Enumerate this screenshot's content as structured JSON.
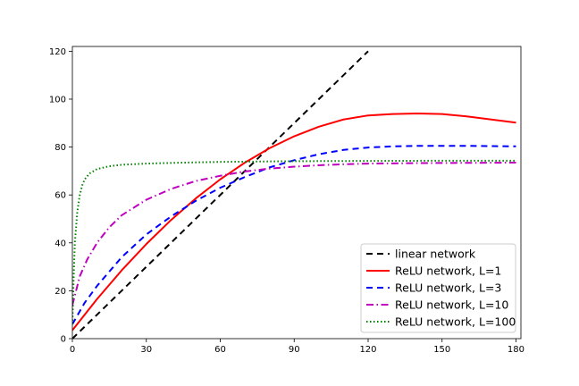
{
  "chart_data": {
    "type": "line",
    "title": "",
    "xlabel": "",
    "ylabel": "",
    "xlim": [
      0,
      182
    ],
    "ylim": [
      0,
      122
    ],
    "xticks": [
      0,
      30,
      60,
      90,
      120,
      150,
      180
    ],
    "yticks": [
      0,
      20,
      40,
      60,
      80,
      100,
      120
    ],
    "grid": false,
    "legend_position": "lower-right",
    "series": [
      {
        "name": "linear network",
        "color": "#000000",
        "style": "dashed",
        "points": [
          [
            0,
            0
          ],
          [
            120,
            120
          ]
        ]
      },
      {
        "name": "ReLU network, L=1",
        "color": "#ff0000",
        "style": "solid",
        "points": [
          [
            0,
            3.5
          ],
          [
            10,
            16.5
          ],
          [
            20,
            28.5
          ],
          [
            30,
            39.5
          ],
          [
            40,
            49.5
          ],
          [
            50,
            58.5
          ],
          [
            60,
            66.5
          ],
          [
            70,
            73.5
          ],
          [
            80,
            79.5
          ],
          [
            90,
            84.5
          ],
          [
            100,
            88.5
          ],
          [
            110,
            91.5
          ],
          [
            120,
            93.2
          ],
          [
            130,
            93.8
          ],
          [
            140,
            94.0
          ],
          [
            150,
            93.8
          ],
          [
            160,
            92.8
          ],
          [
            170,
            91.5
          ],
          [
            180,
            90.2
          ]
        ]
      },
      {
        "name": "ReLU network, L=3",
        "color": "#0000ff",
        "style": "dashed",
        "points": [
          [
            0,
            6
          ],
          [
            5,
            15
          ],
          [
            10,
            22
          ],
          [
            20,
            34
          ],
          [
            30,
            43.5
          ],
          [
            40,
            51
          ],
          [
            50,
            57.5
          ],
          [
            60,
            63
          ],
          [
            70,
            67.5
          ],
          [
            80,
            71.5
          ],
          [
            90,
            74.5
          ],
          [
            100,
            77
          ],
          [
            110,
            78.8
          ],
          [
            120,
            79.8
          ],
          [
            130,
            80.3
          ],
          [
            140,
            80.5
          ],
          [
            150,
            80.5
          ],
          [
            160,
            80.5
          ],
          [
            170,
            80.4
          ],
          [
            180,
            80.3
          ]
        ]
      },
      {
        "name": "ReLU network, L=10",
        "color": "#bf00bf",
        "style": "dashdot",
        "points": [
          [
            0,
            14
          ],
          [
            3,
            26
          ],
          [
            6,
            33
          ],
          [
            10,
            40
          ],
          [
            15,
            46.5
          ],
          [
            20,
            51.5
          ],
          [
            30,
            58
          ],
          [
            40,
            62.5
          ],
          [
            50,
            65.8
          ],
          [
            60,
            68
          ],
          [
            70,
            69.8
          ],
          [
            80,
            71
          ],
          [
            90,
            71.8
          ],
          [
            100,
            72.4
          ],
          [
            110,
            72.8
          ],
          [
            120,
            73.1
          ],
          [
            140,
            73.3
          ],
          [
            160,
            73.4
          ],
          [
            180,
            73.5
          ]
        ]
      },
      {
        "name": "ReLU network, L=100",
        "color": "#008000",
        "style": "dotted",
        "points": [
          [
            0,
            6
          ],
          [
            0.5,
            25
          ],
          [
            1,
            40
          ],
          [
            2,
            53
          ],
          [
            3,
            60
          ],
          [
            4,
            64
          ],
          [
            5,
            66.5
          ],
          [
            7,
            69
          ],
          [
            10,
            70.8
          ],
          [
            15,
            72
          ],
          [
            20,
            72.6
          ],
          [
            30,
            73.1
          ],
          [
            45,
            73.5
          ],
          [
            60,
            73.8
          ],
          [
            90,
            74.1
          ],
          [
            120,
            74.2
          ],
          [
            150,
            74.3
          ],
          [
            180,
            74.3
          ]
        ]
      }
    ]
  }
}
